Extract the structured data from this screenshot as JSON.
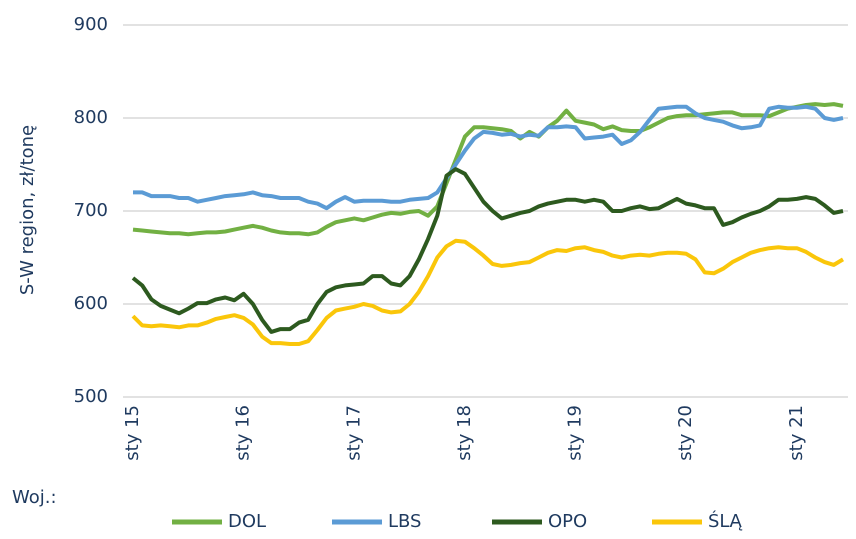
{
  "chart_data": {
    "type": "line",
    "y_label": "S-W region, zł/tonę",
    "legend_title": "Woj.:",
    "categories": [
      "sty 15",
      null,
      null,
      null,
      null,
      null,
      null,
      null,
      null,
      null,
      null,
      null,
      "sty 16",
      null,
      null,
      null,
      null,
      null,
      null,
      null,
      null,
      null,
      null,
      null,
      "sty 17",
      null,
      null,
      null,
      null,
      null,
      null,
      null,
      null,
      null,
      null,
      null,
      "sty 18",
      null,
      null,
      null,
      null,
      null,
      null,
      null,
      null,
      null,
      null,
      null,
      "sty 19",
      null,
      null,
      null,
      null,
      null,
      null,
      null,
      null,
      null,
      null,
      null,
      "sty 20",
      null,
      null,
      null,
      null,
      null,
      null,
      null,
      null,
      null,
      null,
      null,
      "sty 21",
      null,
      null,
      null,
      null,
      null
    ],
    "series": [
      {
        "name": "DOL",
        "color": "#72b043",
        "values": [
          680,
          679,
          678,
          677,
          676,
          676,
          675,
          676,
          677,
          677,
          678,
          680,
          682,
          684,
          682,
          679,
          677,
          676,
          676,
          675,
          677,
          683,
          688,
          690,
          692,
          690,
          693,
          696,
          698,
          697,
          699,
          700,
          695,
          705,
          730,
          755,
          780,
          790,
          790,
          789,
          788,
          786,
          778,
          785,
          780,
          790,
          797,
          808,
          797,
          795,
          793,
          788,
          791,
          787,
          786,
          786,
          790,
          795,
          800,
          802,
          803,
          803,
          804,
          805,
          806,
          806,
          803,
          803,
          803,
          802,
          806,
          810,
          812,
          814,
          815,
          814,
          815,
          813
        ]
      },
      {
        "name": "LBS",
        "color": "#5b9bd5",
        "values": [
          720,
          720,
          716,
          716,
          716,
          714,
          714,
          710,
          712,
          714,
          716,
          717,
          718,
          720,
          717,
          716,
          714,
          714,
          714,
          710,
          708,
          703,
          710,
          715,
          710,
          711,
          711,
          711,
          710,
          710,
          712,
          713,
          714,
          720,
          735,
          750,
          765,
          778,
          785,
          784,
          782,
          783,
          780,
          782,
          781,
          790,
          790,
          791,
          790,
          778,
          779,
          780,
          782,
          772,
          776,
          785,
          798,
          810,
          811,
          812,
          812,
          805,
          800,
          798,
          796,
          792,
          789,
          790,
          792,
          810,
          812,
          811,
          811,
          812,
          810,
          800,
          798,
          800
        ]
      },
      {
        "name": "OPO",
        "color": "#2d5a1f",
        "values": [
          628,
          620,
          605,
          598,
          594,
          590,
          595,
          601,
          601,
          605,
          607,
          604,
          611,
          600,
          583,
          570,
          573,
          573,
          580,
          583,
          600,
          613,
          618,
          620,
          621,
          622,
          630,
          630,
          622,
          620,
          630,
          648,
          670,
          695,
          738,
          745,
          740,
          725,
          710,
          700,
          692,
          695,
          698,
          700,
          705,
          708,
          710,
          712,
          712,
          710,
          712,
          710,
          700,
          700,
          703,
          705,
          702,
          703,
          708,
          713,
          708,
          706,
          703,
          703,
          685,
          688,
          693,
          697,
          700,
          705,
          712,
          712,
          713,
          715,
          713,
          706,
          698,
          700
        ]
      },
      {
        "name": "ŚLĄ",
        "color": "#fac60a",
        "values": [
          587,
          577,
          576,
          577,
          576,
          575,
          577,
          577,
          580,
          584,
          586,
          588,
          585,
          578,
          565,
          558,
          558,
          557,
          557,
          560,
          572,
          585,
          593,
          595,
          597,
          600,
          598,
          593,
          591,
          592,
          600,
          613,
          630,
          650,
          662,
          668,
          667,
          660,
          652,
          643,
          641,
          642,
          644,
          645,
          650,
          655,
          658,
          657,
          660,
          661,
          658,
          656,
          652,
          650,
          652,
          653,
          652,
          654,
          655,
          655,
          654,
          648,
          634,
          633,
          638,
          645,
          650,
          655,
          658,
          660,
          661,
          660,
          660,
          656,
          650,
          645,
          642,
          648
        ]
      }
    ],
    "ylim": [
      500,
      900
    ],
    "yticks": [
      500,
      600,
      700,
      800,
      900
    ],
    "grid": true
  }
}
